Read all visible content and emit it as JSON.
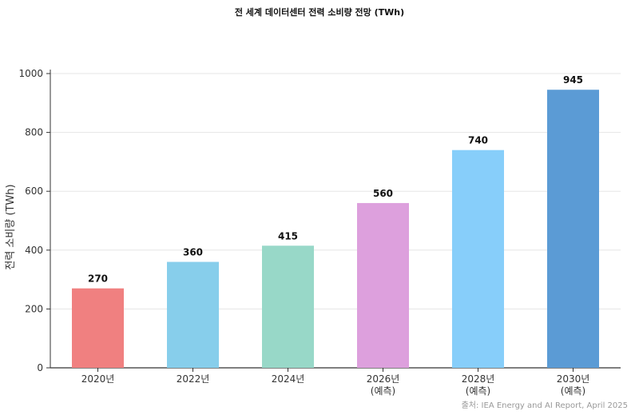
{
  "chart_data": {
    "type": "bar",
    "title": "전 세계 데이터센터 전력 소비량 전망 (TWh)",
    "ylabel": "전력 소비량 (TWh)",
    "xlabel": "",
    "categories": [
      "2020년",
      "2022년",
      "2024년",
      "2026년\n(예측)",
      "2028년\n(예측)",
      "2030년\n(예측)"
    ],
    "values": [
      270,
      360,
      415,
      560,
      740,
      945
    ],
    "colors": [
      "#f08080",
      "#87ceeb",
      "#98d8c8",
      "#dda0dd",
      "#87cefa",
      "#5b9bd5"
    ],
    "ylim": [
      0,
      1000
    ],
    "yticks": [
      0,
      200,
      400,
      600,
      800,
      1000
    ],
    "grid": true,
    "data_labels": true
  },
  "source": "출처: IEA Energy and AI Report, April 2025"
}
